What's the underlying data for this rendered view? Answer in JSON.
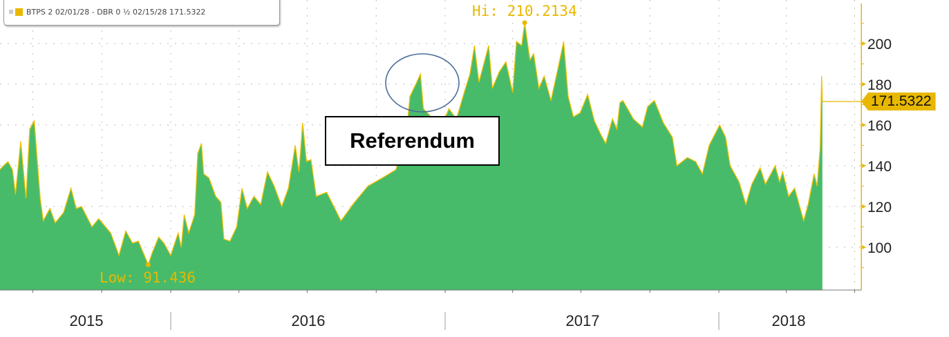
{
  "legend": {
    "label": "BTPS 2 02/01/28 - DBR 0 ½ 02/15/28 171.5322"
  },
  "annotations": {
    "referendum": "Referendum",
    "high": "Hi: 210.2134",
    "low": "Low: 91.436",
    "last_value": "171.5322"
  },
  "colors": {
    "fill": "#47bb6a",
    "line": "#f0c000",
    "accent": "#e8b800",
    "ellipse": "#4d6e99"
  },
  "chart_data": {
    "type": "area",
    "title": "",
    "xlabel": "",
    "ylabel": "",
    "x_tick_labels": [
      "2015",
      "2016",
      "2017",
      "2018"
    ],
    "y_ticks": [
      100,
      120,
      140,
      160,
      180,
      200
    ],
    "xlim": [
      "2015-05-18",
      "2018-07-10"
    ],
    "ylim": [
      79,
      221
    ],
    "grid": true,
    "y_axis_side": "right",
    "legend_placement": "top-left",
    "series": [
      {
        "name": "BTPS 2 02/01/28 - DBR 0 ½ 02/15/28",
        "points": [
          [
            "2015-05-18",
            138
          ],
          [
            "2015-05-23",
            140
          ],
          [
            "2015-05-29",
            142
          ],
          [
            "2015-06-04",
            138
          ],
          [
            "2015-06-08",
            126
          ],
          [
            "2015-06-15",
            152
          ],
          [
            "2015-06-22",
            124
          ],
          [
            "2015-06-27",
            158
          ],
          [
            "2015-07-03",
            162
          ],
          [
            "2015-07-11",
            124
          ],
          [
            "2015-07-15",
            113
          ],
          [
            "2015-07-24",
            119
          ],
          [
            "2015-07-31",
            112
          ],
          [
            "2015-08-11",
            117
          ],
          [
            "2015-08-21",
            129
          ],
          [
            "2015-08-28",
            119
          ],
          [
            "2015-09-04",
            120
          ],
          [
            "2015-09-18",
            110
          ],
          [
            "2015-09-27",
            114
          ],
          [
            "2015-10-13",
            107
          ],
          [
            "2015-10-24",
            96
          ],
          [
            "2015-11-02",
            108
          ],
          [
            "2015-11-11",
            102
          ],
          [
            "2015-11-19",
            103
          ],
          [
            "2015-12-02",
            91.436
          ],
          [
            "2015-12-07",
            97
          ],
          [
            "2015-12-16",
            105
          ],
          [
            "2015-12-23",
            102
          ],
          [
            "2016-01-01",
            96
          ],
          [
            "2016-01-11",
            107
          ],
          [
            "2016-01-15",
            100
          ],
          [
            "2016-01-19",
            116
          ],
          [
            "2016-01-25",
            107
          ],
          [
            "2016-02-02",
            116
          ],
          [
            "2016-02-06",
            146
          ],
          [
            "2016-02-11",
            151
          ],
          [
            "2016-02-14",
            136
          ],
          [
            "2016-02-21",
            134
          ],
          [
            "2016-03-01",
            125
          ],
          [
            "2016-03-08",
            122
          ],
          [
            "2016-03-12",
            104
          ],
          [
            "2016-03-20",
            103
          ],
          [
            "2016-03-29",
            110
          ],
          [
            "2016-04-05",
            129
          ],
          [
            "2016-04-12",
            119
          ],
          [
            "2016-04-21",
            125
          ],
          [
            "2016-04-30",
            121
          ],
          [
            "2016-05-09",
            137
          ],
          [
            "2016-05-18",
            130
          ],
          [
            "2016-05-28",
            120
          ],
          [
            "2016-06-06",
            129
          ],
          [
            "2016-06-15",
            150
          ],
          [
            "2016-06-20",
            137
          ],
          [
            "2016-06-25",
            161
          ],
          [
            "2016-06-30",
            142
          ],
          [
            "2016-07-06",
            143
          ],
          [
            "2016-07-13",
            125
          ],
          [
            "2016-07-27",
            127
          ],
          [
            "2016-08-15",
            113
          ],
          [
            "2016-09-02",
            122
          ],
          [
            "2016-09-20",
            130
          ],
          [
            "2016-10-09",
            134
          ],
          [
            "2016-10-27",
            138
          ],
          [
            "2016-11-09",
            151
          ],
          [
            "2016-11-15",
            174
          ],
          [
            "2016-11-24",
            181
          ],
          [
            "2016-11-29",
            185
          ],
          [
            "2016-12-03",
            168
          ],
          [
            "2016-12-16",
            163
          ],
          [
            "2016-12-28",
            160
          ],
          [
            "2017-01-06",
            168
          ],
          [
            "2017-01-16",
            163
          ],
          [
            "2017-01-28",
            178
          ],
          [
            "2017-02-03",
            185
          ],
          [
            "2017-02-09",
            199
          ],
          [
            "2017-02-15",
            181
          ],
          [
            "2017-02-28",
            199
          ],
          [
            "2017-03-05",
            178
          ],
          [
            "2017-03-14",
            186
          ],
          [
            "2017-03-23",
            191
          ],
          [
            "2017-04-01",
            176
          ],
          [
            "2017-04-06",
            201
          ],
          [
            "2017-04-13",
            199
          ],
          [
            "2017-04-17",
            210.2134
          ],
          [
            "2017-04-24",
            192
          ],
          [
            "2017-04-29",
            195
          ],
          [
            "2017-05-06",
            178
          ],
          [
            "2017-05-13",
            184
          ],
          [
            "2017-05-22",
            172
          ],
          [
            "2017-05-31",
            187
          ],
          [
            "2017-06-08",
            201
          ],
          [
            "2017-06-14",
            174
          ],
          [
            "2017-06-21",
            164
          ],
          [
            "2017-06-30",
            166
          ],
          [
            "2017-07-10",
            175
          ],
          [
            "2017-07-19",
            162
          ],
          [
            "2017-07-28",
            155
          ],
          [
            "2017-08-03",
            151
          ],
          [
            "2017-08-12",
            163
          ],
          [
            "2017-08-18",
            158
          ],
          [
            "2017-08-22",
            171
          ],
          [
            "2017-08-26",
            172
          ],
          [
            "2017-09-09",
            163
          ],
          [
            "2017-09-21",
            159
          ],
          [
            "2017-09-28",
            169
          ],
          [
            "2017-10-07",
            172
          ],
          [
            "2017-10-19",
            161
          ],
          [
            "2017-10-31",
            154
          ],
          [
            "2017-11-06",
            140
          ],
          [
            "2017-11-20",
            144
          ],
          [
            "2017-12-01",
            142
          ],
          [
            "2017-12-10",
            136
          ],
          [
            "2017-12-19",
            150
          ],
          [
            "2018-01-02",
            160
          ],
          [
            "2018-01-10",
            154
          ],
          [
            "2018-01-16",
            140
          ],
          [
            "2018-01-28",
            132
          ],
          [
            "2018-02-06",
            121
          ],
          [
            "2018-02-14",
            131
          ],
          [
            "2018-02-25",
            139
          ],
          [
            "2018-03-04",
            131
          ],
          [
            "2018-03-17",
            140
          ],
          [
            "2018-03-23",
            132
          ],
          [
            "2018-03-27",
            137
          ],
          [
            "2018-04-04",
            125
          ],
          [
            "2018-04-12",
            129
          ],
          [
            "2018-04-24",
            113
          ],
          [
            "2018-04-30",
            121
          ],
          [
            "2018-05-08",
            136
          ],
          [
            "2018-05-12",
            130
          ],
          [
            "2018-05-16",
            149
          ],
          [
            "2018-05-18",
            184
          ],
          [
            "2018-05-19",
            171.5322
          ]
        ]
      }
    ]
  }
}
